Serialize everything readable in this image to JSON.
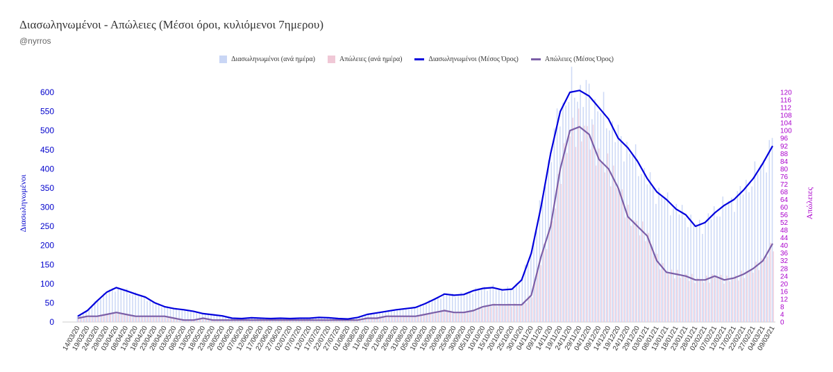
{
  "title": "Διασωληνωμένοι - Απώλειες (Μέσοι όροι, κυλιόμενοι 7ημερου)",
  "subtitle": "@nyrros",
  "colors": {
    "intubated_bar": "#c9d6f5",
    "deaths_bar": "#f0c8d6",
    "intubated_line": "#0000dd",
    "deaths_line": "#7b5ea7",
    "left_axis": "#0000cc",
    "right_axis": "#aa00cc"
  },
  "chart_data": {
    "type": "bar",
    "title": "Διασωληνωμένοι - Απώλειες (Μέσοι όροι, κυλιόμενοι 7ημερου)",
    "ylabel_left": "Διασωληνωμένοι",
    "ylabel_right": "Απώλειες",
    "ylim_left": [
      0,
      620
    ],
    "ylim_right": [
      0,
      124
    ],
    "yticks_left": [
      "0",
      "50",
      "100",
      "150",
      "200",
      "250",
      "300",
      "350",
      "400",
      "450",
      "500",
      "550",
      "600"
    ],
    "yticks_right": [
      "0",
      "4",
      "8",
      "12",
      "16",
      "20",
      "24",
      "28",
      "32",
      "36",
      "40",
      "44",
      "48",
      "52",
      "56",
      "60",
      "64",
      "68",
      "72",
      "76",
      "80",
      "84",
      "88",
      "92",
      "96",
      "100",
      "104",
      "108",
      "112",
      "116",
      "120"
    ],
    "x_tick_labels": [
      "14/03/20",
      "19/03/20",
      "24/03/20",
      "29/03/20",
      "03/04/20",
      "08/04/20",
      "13/04/20",
      "18/04/20",
      "23/04/20",
      "28/04/20",
      "03/05/20",
      "08/05/20",
      "13/05/20",
      "18/05/20",
      "23/05/20",
      "28/05/20",
      "02/06/20",
      "07/06/20",
      "12/06/20",
      "17/06/20",
      "22/06/20",
      "27/06/20",
      "02/07/20",
      "07/07/20",
      "12/07/20",
      "17/07/20",
      "22/07/20",
      "27/07/20",
      "01/08/20",
      "06/08/20",
      "11/08/20",
      "16/08/20",
      "21/08/20",
      "26/08/20",
      "31/08/20",
      "05/09/20",
      "10/09/20",
      "15/09/20",
      "20/09/20",
      "25/09/20",
      "30/09/20",
      "05/10/20",
      "10/10/20",
      "15/10/20",
      "20/10/20",
      "25/10/20",
      "30/10/20",
      "04/11/20",
      "09/11/20",
      "14/11/20",
      "19/11/20",
      "24/11/20",
      "29/11/20",
      "04/12/20",
      "09/12/20",
      "14/12/20",
      "19/12/20",
      "24/12/20",
      "29/12/20",
      "03/01/21",
      "08/01/21",
      "13/01/21",
      "18/01/21",
      "23/01/21",
      "28/01/21",
      "02/02/21",
      "07/02/21",
      "12/02/21",
      "17/02/21",
      "22/02/21",
      "27/02/21",
      "04/03/21",
      "09/03/21"
    ],
    "legend": [
      {
        "name": "Διασωληνωμένοι (ανά ημέρα)",
        "kind": "box",
        "color": "#c9d6f5"
      },
      {
        "name": "Απώλειες (ανά ημέρα)",
        "kind": "box",
        "color": "#f0c8d6"
      },
      {
        "name": "Διασωληνωμένοι (Μέσος Όρος)",
        "kind": "line",
        "color": "#0000dd"
      },
      {
        "name": "Απώλειες (Μέσος Όρος)",
        "kind": "line",
        "color": "#7b5ea7"
      }
    ],
    "legend_position": "top-center",
    "series": [
      {
        "name": "Διασωληνωμένοι (Μέσος Όρος)",
        "axis": "left",
        "x": [
          "14/03/20",
          "19/03/20",
          "24/03/20",
          "29/03/20",
          "03/04/20",
          "08/04/20",
          "13/04/20",
          "18/04/20",
          "23/04/20",
          "28/04/20",
          "03/05/20",
          "08/05/20",
          "13/05/20",
          "18/05/20",
          "23/05/20",
          "28/05/20",
          "02/06/20",
          "07/06/20",
          "12/06/20",
          "17/06/20",
          "22/06/20",
          "27/06/20",
          "02/07/20",
          "07/07/20",
          "12/07/20",
          "17/07/20",
          "22/07/20",
          "27/07/20",
          "01/08/20",
          "06/08/20",
          "11/08/20",
          "16/08/20",
          "21/08/20",
          "26/08/20",
          "31/08/20",
          "05/09/20",
          "10/09/20",
          "15/09/20",
          "20/09/20",
          "25/09/20",
          "30/09/20",
          "05/10/20",
          "10/10/20",
          "15/10/20",
          "20/10/20",
          "25/10/20",
          "30/10/20",
          "04/11/20",
          "09/11/20",
          "14/11/20",
          "19/11/20",
          "24/11/20",
          "29/11/20",
          "04/12/20",
          "09/12/20",
          "14/12/20",
          "19/12/20",
          "24/12/20",
          "29/12/20",
          "03/01/21",
          "08/01/21",
          "13/01/21",
          "18/01/21",
          "23/01/21",
          "28/01/21",
          "02/02/21",
          "07/02/21",
          "12/02/21",
          "17/02/21",
          "22/02/21",
          "27/02/21",
          "04/03/21",
          "09/03/21"
        ],
        "values": [
          15,
          30,
          55,
          78,
          90,
          82,
          73,
          65,
          50,
          40,
          35,
          32,
          28,
          22,
          19,
          16,
          10,
          9,
          11,
          10,
          9,
          10,
          9,
          10,
          10,
          12,
          11,
          9,
          8,
          12,
          20,
          24,
          28,
          32,
          35,
          38,
          48,
          60,
          73,
          70,
          72,
          82,
          88,
          90,
          84,
          86,
          110,
          180,
          300,
          440,
          550,
          600,
          605,
          590,
          560,
          530,
          480,
          455,
          420,
          375,
          340,
          320,
          295,
          280,
          250,
          260,
          285,
          305,
          320,
          345,
          375,
          415,
          460
        ]
      },
      {
        "name": "Απώλειες (Μέσος Όρος)",
        "axis": "right",
        "x": [
          "14/03/20",
          "19/03/20",
          "24/03/20",
          "29/03/20",
          "03/04/20",
          "08/04/20",
          "13/04/20",
          "18/04/20",
          "23/04/20",
          "28/04/20",
          "03/05/20",
          "08/05/20",
          "13/05/20",
          "18/05/20",
          "23/05/20",
          "28/05/20",
          "02/06/20",
          "07/06/20",
          "12/06/20",
          "17/06/20",
          "22/06/20",
          "27/06/20",
          "02/07/20",
          "07/07/20",
          "12/07/20",
          "17/07/20",
          "22/07/20",
          "27/07/20",
          "01/08/20",
          "06/08/20",
          "11/08/20",
          "16/08/20",
          "21/08/20",
          "26/08/20",
          "31/08/20",
          "05/09/20",
          "10/09/20",
          "15/09/20",
          "20/09/20",
          "25/09/20",
          "30/09/20",
          "05/10/20",
          "10/10/20",
          "15/10/20",
          "20/10/20",
          "25/10/20",
          "30/10/20",
          "04/11/20",
          "09/11/20",
          "14/11/20",
          "19/11/20",
          "24/11/20",
          "29/11/20",
          "04/12/20",
          "09/12/20",
          "14/12/20",
          "19/12/20",
          "24/12/20",
          "29/12/20",
          "03/01/21",
          "08/01/21",
          "13/01/21",
          "18/01/21",
          "23/01/21",
          "28/01/21",
          "02/02/21",
          "07/02/21",
          "12/02/21",
          "17/02/21",
          "22/02/21",
          "27/02/21",
          "04/03/21",
          "09/03/21"
        ],
        "values": [
          2,
          3,
          3,
          4,
          5,
          4,
          3,
          3,
          3,
          3,
          2,
          1,
          1,
          2,
          1,
          1,
          1,
          1,
          1,
          1,
          1,
          1,
          1,
          1,
          1,
          1,
          1,
          1,
          1,
          1,
          2,
          2,
          3,
          3,
          3,
          3,
          4,
          5,
          6,
          5,
          5,
          6,
          8,
          9,
          9,
          9,
          9,
          14,
          34,
          50,
          80,
          100,
          102,
          98,
          85,
          80,
          70,
          55,
          50,
          45,
          32,
          26,
          25,
          24,
          22,
          22,
          24,
          22,
          23,
          25,
          28,
          32,
          41
        ]
      }
    ]
  }
}
